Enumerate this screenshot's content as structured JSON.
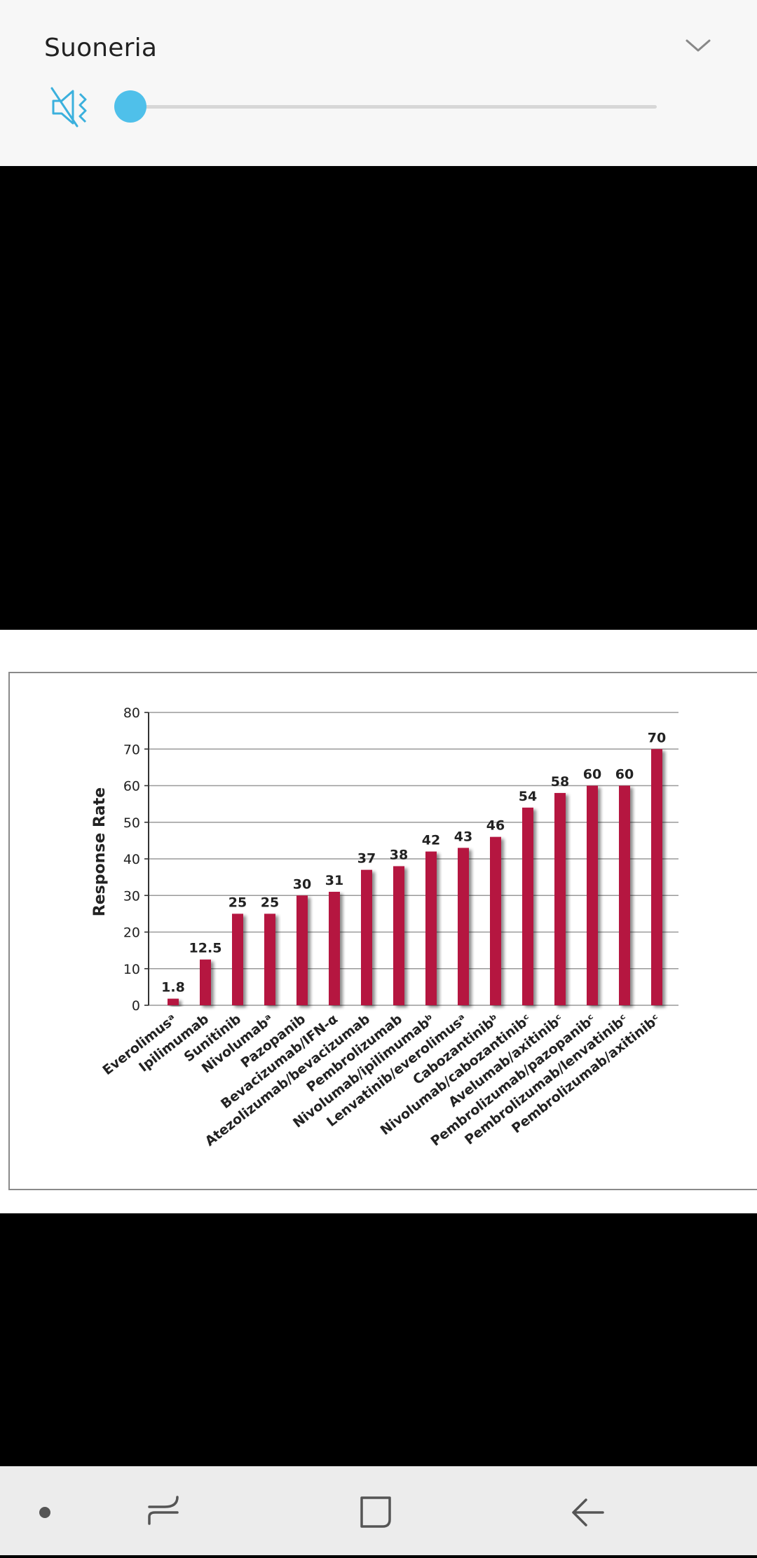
{
  "volume_panel": {
    "title": "Suoneria",
    "level": 0,
    "icons": {
      "mute": "muted-speaker-icon",
      "collapse": "chevron-down-icon"
    },
    "accent_color": "#4fc0ea"
  },
  "nav_bar": {
    "buttons": [
      {
        "name": "dot-icon"
      },
      {
        "name": "recents-icon"
      },
      {
        "name": "home-icon"
      },
      {
        "name": "back-icon"
      }
    ]
  },
  "chart_data": {
    "type": "bar",
    "ylabel": "Response Rate",
    "ylim": [
      0,
      80
    ],
    "yticks": [
      "0",
      "10",
      "20",
      "30",
      "40",
      "50",
      "60",
      "70",
      "80"
    ],
    "grid": true,
    "bar_color": "#b5123f",
    "categories": [
      "Everolimusᵃ",
      "Ipilimumab",
      "Sunitinib",
      "Nivolumabᵃ",
      "Pazopanib",
      "Bevacizumab/IFN-α",
      "Atezolizumab/bevacizumab",
      "Pembrolizumab",
      "Nivolumab/ipilimumabᵇ",
      "Lenvatinib/everolimusᵃ",
      "Cabozantinibᵇ",
      "Nivolumab/cabozantinibᶜ",
      "Avelumab/axitinibᶜ",
      "Pembrolizumab/pazopanibᶜ",
      "Pembrolizumab/lenvatinibᶜ",
      "Pembrolizumab/axitinibᶜ"
    ],
    "values": [
      1.8,
      12.5,
      25,
      25,
      30,
      31,
      37,
      38,
      42,
      43,
      46,
      54,
      58,
      60,
      60,
      70
    ],
    "value_labels": [
      "1.8",
      "12.5",
      "25",
      "25",
      "30",
      "31",
      "37",
      "38",
      "42",
      "43",
      "46",
      "54",
      "58",
      "60",
      "60",
      "70"
    ]
  }
}
